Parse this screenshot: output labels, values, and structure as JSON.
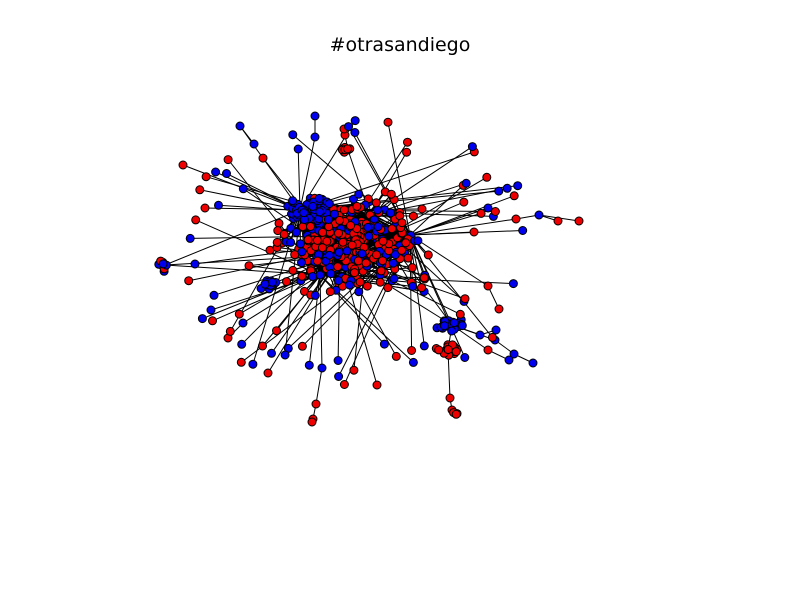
{
  "title": "#otrasandiego",
  "colors": {
    "node_blue": "#0000ee",
    "node_red": "#ee0000",
    "edge": "#000000",
    "background": "#ffffff"
  }
}
